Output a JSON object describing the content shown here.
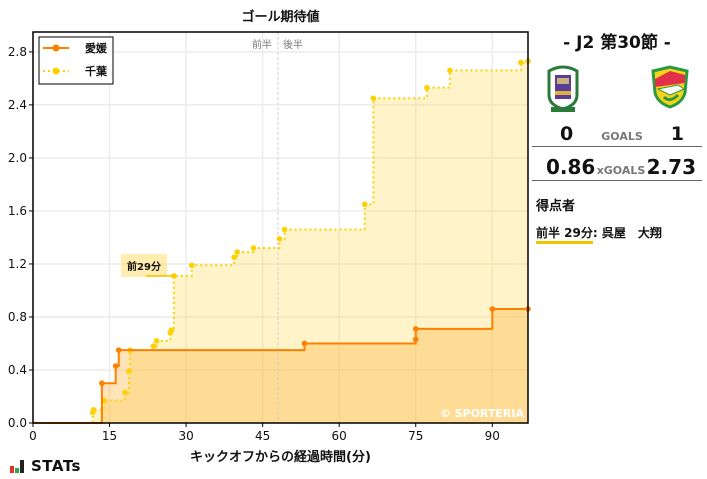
{
  "chart_data": {
    "type": "line",
    "subtype": "step",
    "title": "ゴール期待値",
    "xlabel": "キックオフからの経過時間(分)",
    "ylabel": "",
    "xlim": [
      0,
      97
    ],
    "ylim": [
      0,
      2.95
    ],
    "xticks": [
      0,
      15,
      30,
      45,
      60,
      75,
      90
    ],
    "yticks": [
      0.0,
      0.4,
      0.8,
      1.2,
      1.6,
      2.0,
      2.4,
      2.8
    ],
    "ytick_labels": [
      "0.0",
      "0.4",
      "0.8",
      "1.2",
      "1.6",
      "2.0",
      "2.4",
      "2.8"
    ],
    "grid": true,
    "halftime_line_x": 48,
    "halftime_labels": [
      "前半",
      "後半"
    ],
    "legend_position": "upper left",
    "series": [
      {
        "name": "愛媛",
        "color": "#ff8000",
        "line_style": "solid",
        "x": [
          0,
          13.5,
          16.2,
          16.8,
          53.2,
          75.0,
          75.0,
          90.0,
          97
        ],
        "y": [
          0,
          0.3,
          0.43,
          0.55,
          0.6,
          0.63,
          0.71,
          0.86,
          0.86
        ],
        "final": 0.86
      },
      {
        "name": "千葉",
        "color": "#ffd000",
        "line_style": "dotted",
        "x": [
          0,
          11.7,
          11.9,
          13.9,
          18.0,
          18.8,
          19.0,
          23.6,
          24.2,
          26.9,
          27.1,
          27.6,
          31.1,
          39.4,
          40.0,
          43.2,
          48.3,
          49.3,
          65.0,
          66.7,
          77.2,
          81.7,
          95.6,
          97
        ],
        "y": [
          0,
          0.08,
          0.1,
          0.17,
          0.23,
          0.39,
          0.55,
          0.58,
          0.62,
          0.68,
          0.7,
          1.11,
          1.19,
          1.25,
          1.29,
          1.32,
          1.39,
          1.46,
          1.65,
          2.45,
          2.53,
          2.66,
          2.72,
          2.73
        ],
        "final": 2.73
      }
    ],
    "annotations": [
      {
        "text": "前29分",
        "x": 27.6,
        "y": 1.11,
        "series": "千葉"
      }
    ],
    "watermark": "© SPORTERIA"
  },
  "match": {
    "round": "- J2 第30節 -",
    "home_team": "愛媛",
    "away_team": "千葉",
    "home_goals": "0",
    "away_goals": "1",
    "goals_label": "GOALS",
    "home_xg": "0.86",
    "away_xg": "2.73",
    "xg_label": "xGOALS"
  },
  "scorers": {
    "title": "得点者",
    "items": [
      {
        "time": "前半 29分",
        "name": ": 呉屋　大翔"
      }
    ]
  },
  "branding": {
    "logo_text": "STATs"
  }
}
